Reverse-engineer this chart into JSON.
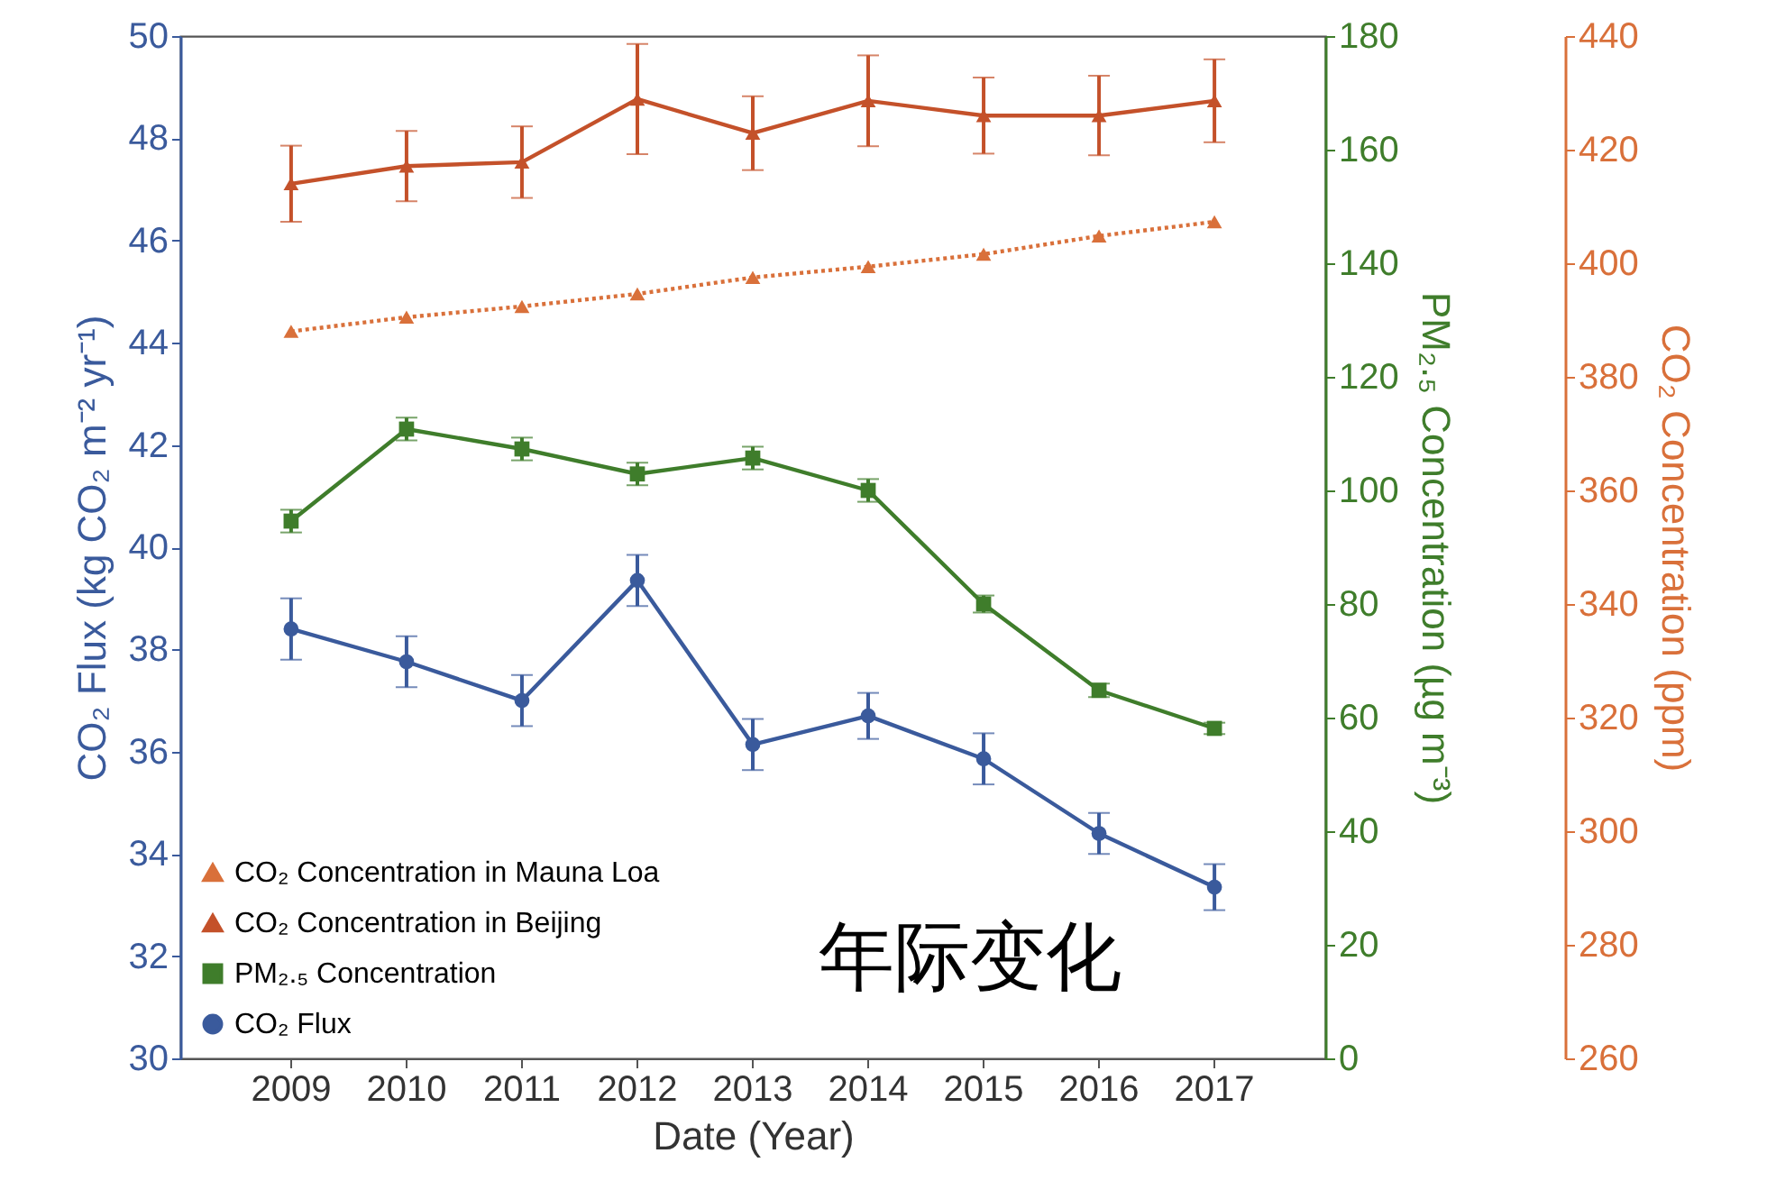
{
  "chart_data": {
    "type": "line",
    "categories": [
      "2009",
      "2010",
      "2011",
      "2012",
      "2013",
      "2014",
      "2015",
      "2016",
      "2017"
    ],
    "xlabel": "Date (Year)",
    "ylabel": "CO₂ Flux (kg CO₂ m⁻² yr⁻¹)",
    "y2label": "PM₂.₅ Concentration (µg m⁻³)",
    "y3label": "CO₂ Concentration (ppm)",
    "ylim": [
      30,
      50
    ],
    "yticks": [
      30,
      32,
      34,
      36,
      38,
      40,
      42,
      44,
      46,
      48,
      50
    ],
    "y2lim": [
      0,
      180
    ],
    "y2ticks": [
      0,
      20,
      40,
      60,
      80,
      100,
      120,
      140,
      160,
      180
    ],
    "y3lim": [
      260,
      440
    ],
    "y3ticks": [
      260,
      280,
      300,
      320,
      340,
      360,
      380,
      400,
      420,
      440
    ],
    "legend": "bottom left",
    "annotations": [
      "年际变化"
    ],
    "series": [
      {
        "name": "CO₂ Concentration in Mauna Loa",
        "color": "#d9703a",
        "axis": "y3",
        "marker": "triangle",
        "line_style": "dotted",
        "values": [
          388,
          390.5,
          392.4,
          394.6,
          397.5,
          399.4,
          401.6,
          404.8,
          407.3
        ]
      },
      {
        "name": "CO₂ Concentration in Beijing",
        "color": "#c4512a",
        "axis": "y3",
        "marker": "triangle",
        "line_style": "solid",
        "values": [
          414,
          417.1,
          417.8,
          428.9,
          422.9,
          428.6,
          426,
          426,
          428.6
        ],
        "errors": [
          6.7,
          6.2,
          6.3,
          9.7,
          6.5,
          8,
          6.7,
          7,
          7.3
        ]
      },
      {
        "name": "PM₂.₅ Concentration",
        "color": "#3f7d2b",
        "axis": "y2",
        "marker": "square",
        "line_style": "solid",
        "values": [
          94.6,
          110.8,
          107.3,
          102.9,
          105.7,
          100,
          80,
          64.8,
          58.1
        ],
        "errors": [
          2,
          2,
          2,
          2,
          2,
          2,
          1.5,
          1.2,
          1
        ]
      },
      {
        "name": "CO₂ Flux",
        "color": "#3a5a9c",
        "marker": "circle",
        "line_style": "solid",
        "values": [
          38.4,
          37.76,
          37,
          39.35,
          36.14,
          36.7,
          35.86,
          34.4,
          33.35
        ],
        "errors": [
          0.6,
          0.5,
          0.5,
          0.5,
          0.5,
          0.45,
          0.5,
          0.4,
          0.45
        ]
      }
    ]
  }
}
